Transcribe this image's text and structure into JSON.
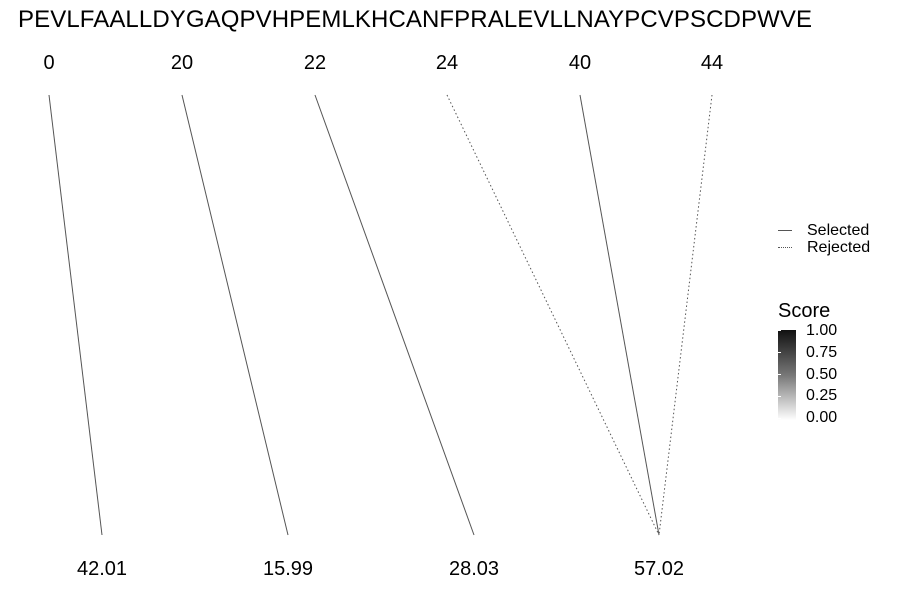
{
  "chart_data": {
    "type": "line",
    "sequence": "PEVLFAALLDYGAQPVHPEMLKHCANFPRALEVLLNAYPCVPSCDPWVE",
    "top_labels": [
      "0",
      "20",
      "22",
      "24",
      "40",
      "44"
    ],
    "bottom_labels": [
      "42.01",
      "15.99",
      "28.03",
      "57.02"
    ],
    "links": [
      {
        "from": "0",
        "to": "42.01",
        "status": "Selected"
      },
      {
        "from": "20",
        "to": "15.99",
        "status": "Selected"
      },
      {
        "from": "22",
        "to": "28.03",
        "status": "Selected"
      },
      {
        "from": "24",
        "to": "57.02",
        "status": "Rejected"
      },
      {
        "from": "40",
        "to": "57.02",
        "status": "Selected"
      },
      {
        "from": "44",
        "to": "57.02",
        "status": "Rejected"
      }
    ],
    "legend_linetype": [
      "Selected",
      "Rejected"
    ],
    "legend_score": {
      "title": "Score",
      "ticks": [
        "1.00",
        "0.75",
        "0.50",
        "0.25",
        "0.00"
      ],
      "range": [
        0,
        1
      ],
      "colors": [
        "#111111",
        "#ffffff"
      ]
    }
  }
}
